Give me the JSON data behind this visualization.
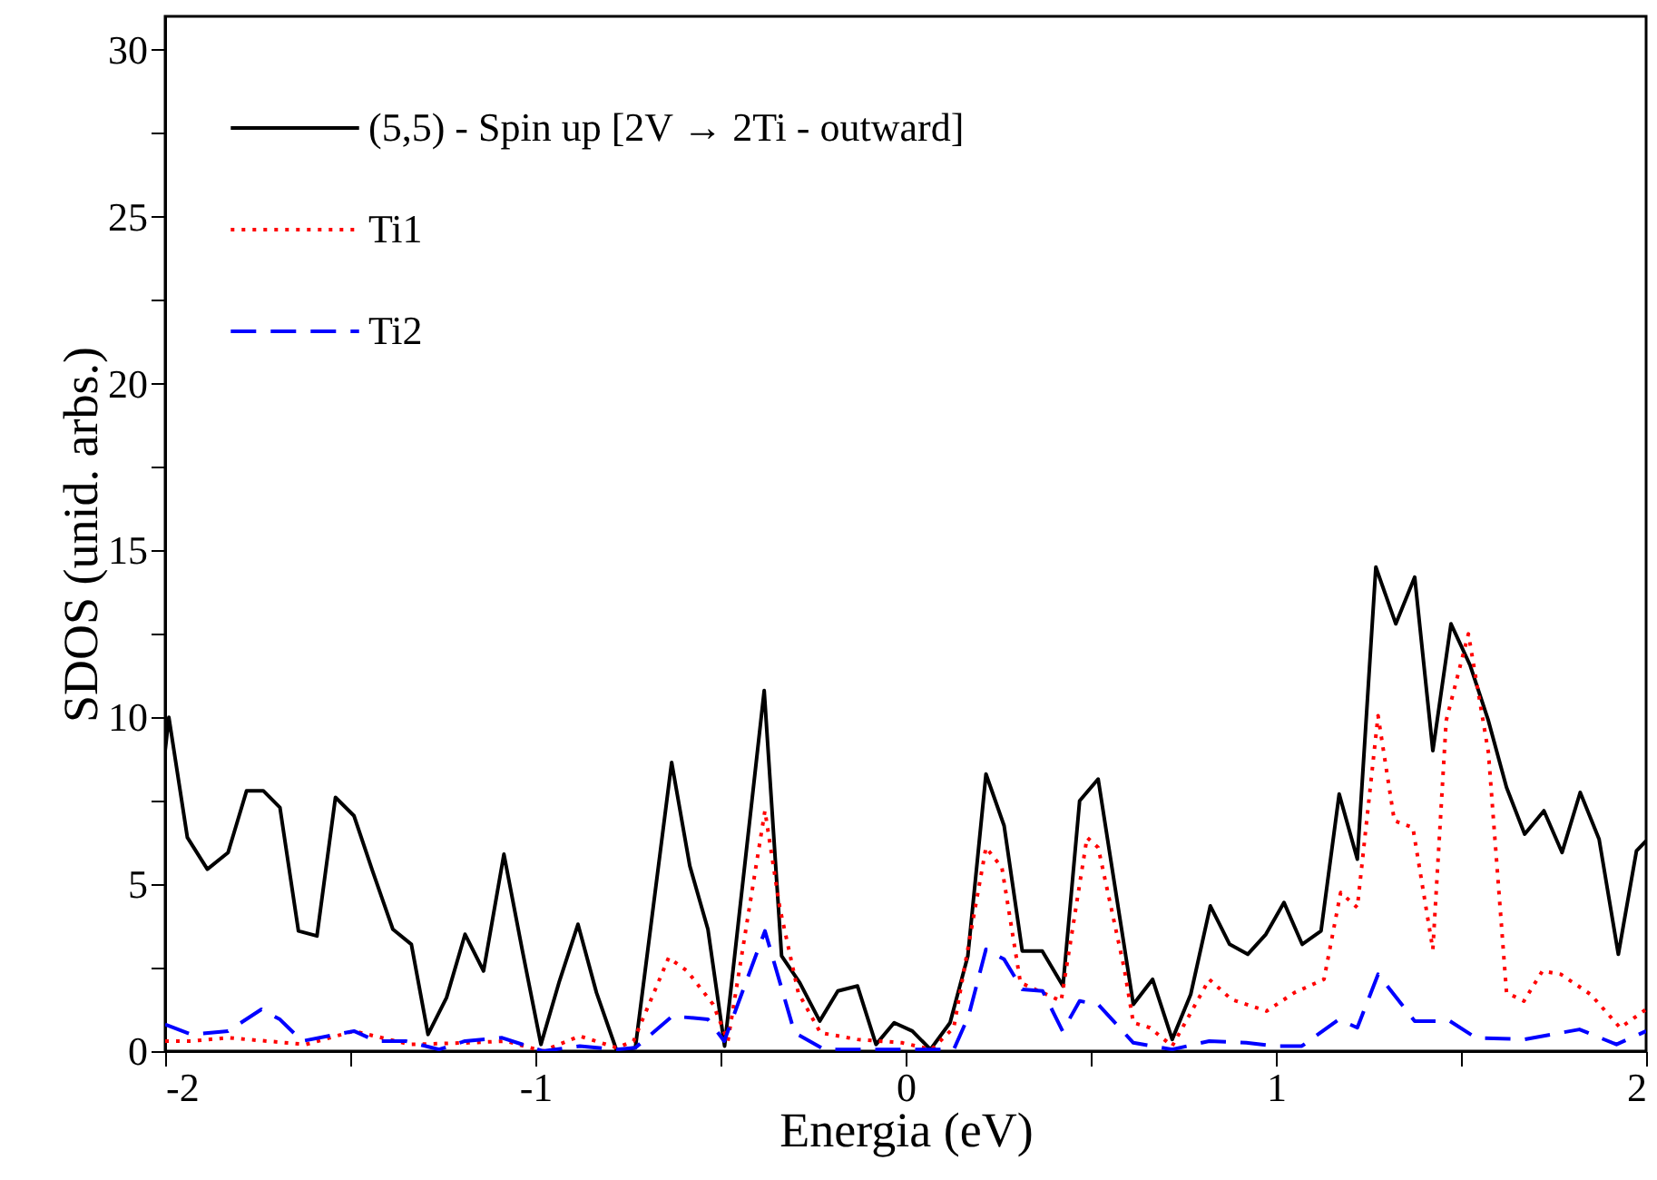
{
  "chart_data": {
    "type": "line",
    "xlabel": "Energia (eV)",
    "ylabel": "SDOS (unid. arbs.)",
    "xlim": [
      -2,
      2
    ],
    "xticks": [
      -2,
      {
        "value": -1.5,
        "label": null
      },
      -1,
      {
        "value": -0.5,
        "label": null
      },
      0,
      {
        "value": 0.5,
        "label": null
      },
      1,
      {
        "value": 1.5,
        "label": null
      },
      2
    ],
    "ylim": [
      0,
      31
    ],
    "yticks": [
      0,
      {
        "value": 2.5,
        "label": null
      },
      5,
      {
        "value": 7.5,
        "label": null
      },
      10,
      {
        "value": 12.5,
        "label": null
      },
      15,
      {
        "value": 17.5,
        "label": null
      },
      20,
      {
        "value": 22.5,
        "label": null
      },
      25,
      {
        "value": 27.5,
        "label": null
      },
      30
    ],
    "legend": "top left",
    "grid": false,
    "marker": "none",
    "series": [
      {
        "name": "(5,5) - Spin up  [2V → 2Ti - outward]",
        "color": "#000000",
        "line_style": "solid",
        "x": [
          -2,
          -1.99,
          -1.94,
          -1.886,
          -1.83,
          -1.78,
          -1.735,
          -1.69,
          -1.64,
          -1.59,
          -1.54,
          -1.49,
          -1.44,
          -1.385,
          -1.335,
          -1.29,
          -1.24,
          -1.19,
          -1.14,
          -1.085,
          -1.035,
          -0.985,
          -0.935,
          -0.885,
          -0.835,
          -0.78,
          -0.73,
          -0.632,
          -0.583,
          -0.534,
          -0.489,
          -0.382,
          -0.335,
          -0.286,
          -0.232,
          -0.183,
          -0.13,
          -0.08,
          -0.031,
          0.018,
          0.067,
          0.12,
          0.168,
          0.217,
          0.266,
          0.315,
          0.369,
          0.425,
          0.47,
          0.52,
          0.615,
          0.667,
          0.72,
          0.77,
          0.823,
          0.875,
          0.924,
          0.973,
          1.022,
          1.071,
          1.122,
          1.171,
          1.22,
          1.27,
          1.324,
          1.375,
          1.424,
          1.473,
          1.525,
          1.574,
          1.623,
          1.672,
          1.724,
          1.773,
          1.822,
          1.873,
          1.925,
          1.974,
          2
        ],
        "values": [
          9.0,
          10.0,
          6.4,
          5.45,
          5.95,
          7.8,
          7.8,
          7.3,
          3.6,
          3.45,
          7.6,
          7.05,
          5.4,
          3.65,
          3.2,
          0.5,
          1.6,
          3.5,
          2.4,
          5.9,
          3.0,
          0.2,
          2.1,
          3.8,
          1.75,
          0,
          0.1,
          8.65,
          5.55,
          3.65,
          0.15,
          10.8,
          2.85,
          2.05,
          0.9,
          1.8,
          1.95,
          0.2,
          0.85,
          0.6,
          0.05,
          0.85,
          2.85,
          8.3,
          6.75,
          3.0,
          3.0,
          1.95,
          7.5,
          8.15,
          1.4,
          2.15,
          0.35,
          1.7,
          4.35,
          3.2,
          2.9,
          3.5,
          4.45,
          3.2,
          3.6,
          7.7,
          5.75,
          14.5,
          12.8,
          14.2,
          9.0,
          12.8,
          11.55,
          9.9,
          7.9,
          6.5,
          7.2,
          5.95,
          7.75,
          6.35,
          2.9,
          6.0,
          6.3
        ]
      },
      {
        "name": "Ti1",
        "color": "#ff0000",
        "line_style": "dotted",
        "x": [
          -2,
          -1.93,
          -1.83,
          -1.62,
          -1.49,
          -1.34,
          -1.18,
          -1.08,
          -0.98,
          -0.88,
          -0.78,
          -0.735,
          -0.64,
          -0.59,
          -0.52,
          -0.48,
          -0.38,
          -0.34,
          -0.29,
          -0.23,
          -0.13,
          -0.01,
          0.07,
          0.13,
          0.217,
          0.26,
          0.31,
          0.35,
          0.42,
          0.49,
          0.52,
          0.59,
          0.615,
          0.66,
          0.72,
          0.82,
          0.88,
          0.975,
          1.05,
          1.13,
          1.175,
          1.22,
          1.276,
          1.32,
          1.37,
          1.424,
          1.46,
          1.52,
          1.574,
          1.623,
          1.67,
          1.72,
          1.77,
          1.85,
          1.93,
          2
        ],
        "values": [
          0.3,
          0.3,
          0.4,
          0.2,
          0.6,
          0.2,
          0.25,
          0.3,
          0,
          0.45,
          0.1,
          0.3,
          2.8,
          2.4,
          1.4,
          0.3,
          7.2,
          4.3,
          1.75,
          0.55,
          0.35,
          0.25,
          0.05,
          0.7,
          6.1,
          5.5,
          2.05,
          1.85,
          1.5,
          6.4,
          6.1,
          2.5,
          0.85,
          0.7,
          0.15,
          2.15,
          1.55,
          1.2,
          1.75,
          2.15,
          4.75,
          4.3,
          10.05,
          6.9,
          6.7,
          3.05,
          9.9,
          12.5,
          8.95,
          1.75,
          1.5,
          2.4,
          2.3,
          1.7,
          0.7,
          1.25
        ]
      },
      {
        "name": "Ti2",
        "color": "#0000ff",
        "line_style": "dashed",
        "x": [
          -2,
          -1.93,
          -1.83,
          -1.74,
          -1.69,
          -1.63,
          -1.49,
          -1.43,
          -1.35,
          -1.26,
          -1.19,
          -1.09,
          -0.98,
          -0.88,
          -0.78,
          -0.73,
          -0.63,
          -0.534,
          -0.49,
          -0.38,
          -0.3,
          -0.22,
          -0.08,
          0.13,
          0.17,
          0.217,
          0.266,
          0.315,
          0.37,
          0.424,
          0.47,
          0.52,
          0.615,
          0.72,
          0.82,
          0.92,
          1.0,
          1.07,
          1.17,
          1.22,
          1.276,
          1.375,
          1.47,
          1.54,
          1.67,
          1.82,
          1.92,
          2
        ],
        "values": [
          0.8,
          0.5,
          0.6,
          1.25,
          0.95,
          0.3,
          0.6,
          0.3,
          0.3,
          0.05,
          0.3,
          0.4,
          0,
          0.15,
          0.05,
          0.1,
          1.05,
          0.95,
          0.3,
          3.6,
          0.55,
          0.05,
          0.05,
          0.05,
          1.05,
          3.05,
          2.75,
          1.85,
          1.8,
          0.6,
          1.5,
          1.4,
          0.25,
          0.05,
          0.3,
          0.25,
          0.15,
          0.15,
          0.95,
          0.7,
          2.3,
          0.9,
          0.9,
          0.4,
          0.35,
          0.65,
          0.2,
          0.6
        ]
      }
    ]
  }
}
